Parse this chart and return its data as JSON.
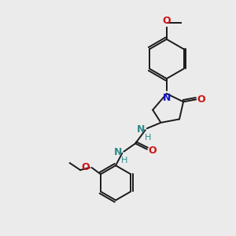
{
  "bg_color": "#ebebeb",
  "bond_color": "#1a1a1a",
  "N_color": "#1414cc",
  "O_color": "#cc1414",
  "H_color": "#2e8b8b",
  "figsize": [
    3.0,
    3.0
  ],
  "dpi": 100,
  "xlim": [
    0,
    10
  ],
  "ylim": [
    0,
    10
  ]
}
